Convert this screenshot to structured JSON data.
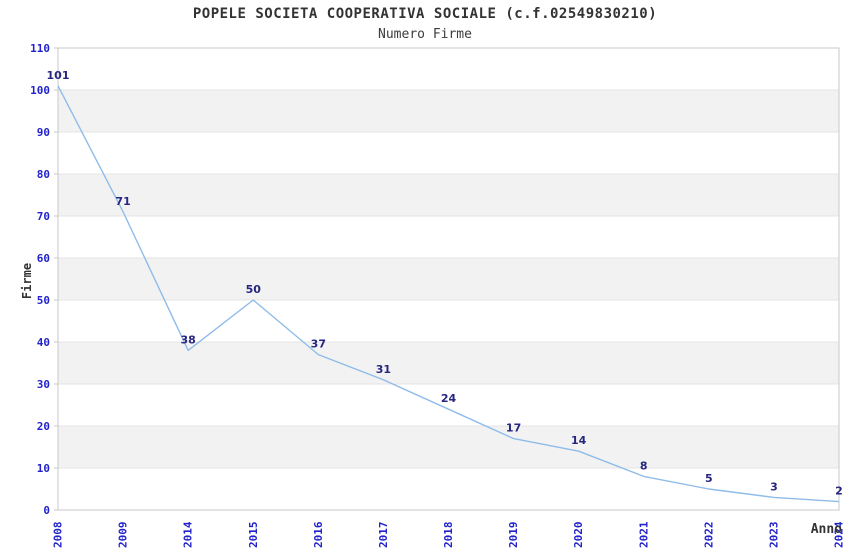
{
  "chart_data": {
    "type": "line",
    "title": "POPELE SOCIETA COOPERATIVA SOCIALE (c.f.02549830210)",
    "subtitle": "Numero Firme",
    "xlabel": "Anno",
    "ylabel": "Firme",
    "categories": [
      "2008",
      "2009",
      "2014",
      "2015",
      "2016",
      "2017",
      "2018",
      "2019",
      "2020",
      "2021",
      "2022",
      "2023",
      "2024"
    ],
    "values": [
      101,
      71,
      38,
      50,
      37,
      31,
      24,
      17,
      14,
      8,
      5,
      3,
      2
    ],
    "ylim": [
      0,
      110
    ],
    "ytick_step": 10,
    "yticks": [
      0,
      10,
      20,
      30,
      40,
      50,
      60,
      70,
      80,
      90,
      100,
      110
    ],
    "grid": "horizontal-gridlines-with-alternating-bands",
    "legend": "none",
    "point_labels_visible": true,
    "x_tick_rotation": -90,
    "colors": {
      "line": "#8fbce9",
      "tick_label": "#2222cc",
      "point_label": "#262680",
      "band": "#f2f2f2",
      "gridline": "#e4e4e4",
      "frame": "#c8c8c8",
      "text": "#333333",
      "background": "#ffffff"
    }
  }
}
